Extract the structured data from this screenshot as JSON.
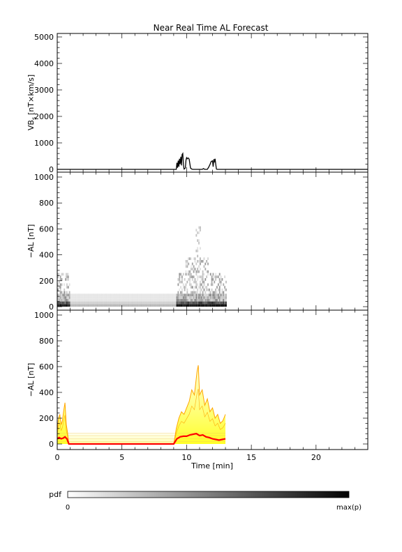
{
  "chart_data": [
    {
      "type": "line",
      "title": "Near Real Time AL Forecast",
      "ylabel_main": "VB",
      "ylabel_sub": "s",
      "ylabel_unit": "[nT×km/s]",
      "xlim": [
        0,
        24
      ],
      "ylim": [
        0,
        5000
      ],
      "yticks": [
        "0",
        "1000",
        "2000",
        "3000",
        "4000",
        "5000"
      ],
      "series": [
        {
          "values_x": [
            0,
            9.2,
            9.25,
            9.3,
            9.35,
            9.4,
            9.45,
            9.5,
            9.55,
            9.6,
            9.65,
            9.7,
            9.75,
            9.8,
            9.85,
            9.9,
            9.95,
            10.0,
            10.05,
            10.1,
            10.15,
            10.2,
            10.25,
            10.3,
            10.4,
            10.5,
            10.55,
            11.2,
            11.3,
            11.4,
            11.6,
            11.7,
            11.8,
            11.9,
            12.0,
            12.05,
            12.1,
            12.15,
            12.2,
            12.25,
            12.3,
            12.35,
            12.4,
            24
          ],
          "values_y": [
            0,
            0,
            250,
            60,
            330,
            100,
            400,
            200,
            480,
            150,
            560,
            600,
            180,
            10,
            20,
            60,
            350,
            440,
            400,
            430,
            420,
            380,
            200,
            50,
            10,
            0,
            0,
            0,
            30,
            0,
            0,
            80,
            180,
            300,
            320,
            100,
            380,
            300,
            400,
            200,
            10,
            0,
            0,
            0
          ]
        }
      ]
    },
    {
      "type": "heatmap",
      "ylabel": "−AL [nT]",
      "xlim": [
        0,
        24
      ],
      "ylim": [
        0,
        1000
      ],
      "yticks": [
        "0",
        "200",
        "400",
        "600",
        "800",
        "1000"
      ],
      "colorscale": [
        "#ffffff",
        "#000000"
      ]
    },
    {
      "type": "area",
      "ylabel": "−AL [nT]",
      "xlabel": "Time [min]",
      "xlim": [
        0,
        24
      ],
      "ylim": [
        0,
        1000
      ],
      "xticks": [
        "0",
        "5",
        "10",
        "15",
        "20"
      ],
      "yticks": [
        "0",
        "200",
        "400",
        "600",
        "800",
        "1000"
      ],
      "series": [
        {
          "color": "#ff0000",
          "x": [
            0,
            0.05,
            0.15,
            0.3,
            0.45,
            0.6,
            0.75,
            0.9,
            9.0,
            9.25,
            9.5,
            9.75,
            10.0,
            10.25,
            10.5,
            10.75,
            11.0,
            11.25,
            11.5,
            11.75,
            12.0,
            12.25,
            12.5,
            12.75,
            13.0
          ],
          "y": [
            40,
            45,
            50,
            40,
            45,
            55,
            40,
            0,
            0,
            40,
            55,
            60,
            60,
            70,
            75,
            80,
            65,
            70,
            55,
            50,
            40,
            35,
            30,
            35,
            40
          ]
        },
        {
          "color": "#ffa500",
          "x": [
            0,
            0.1,
            0.2,
            0.3,
            0.4,
            0.5,
            0.6,
            0.7,
            0.8,
            0.9,
            9.0,
            9.2,
            9.4,
            9.6,
            9.8,
            10.0,
            10.2,
            10.4,
            10.6,
            10.8,
            10.9,
            11.0,
            11.2,
            11.4,
            11.6,
            11.8,
            12.0,
            12.2,
            12.4,
            12.6,
            12.8,
            13.0
          ],
          "y": [
            100,
            200,
            230,
            150,
            180,
            260,
            320,
            150,
            90,
            0,
            0,
            120,
            200,
            250,
            230,
            280,
            330,
            420,
            380,
            560,
            610,
            380,
            420,
            300,
            350,
            250,
            280,
            200,
            230,
            160,
            180,
            230
          ]
        }
      ]
    }
  ],
  "colorbar": {
    "label": "pdf",
    "min_label": "0",
    "max_label": "max(p)"
  }
}
